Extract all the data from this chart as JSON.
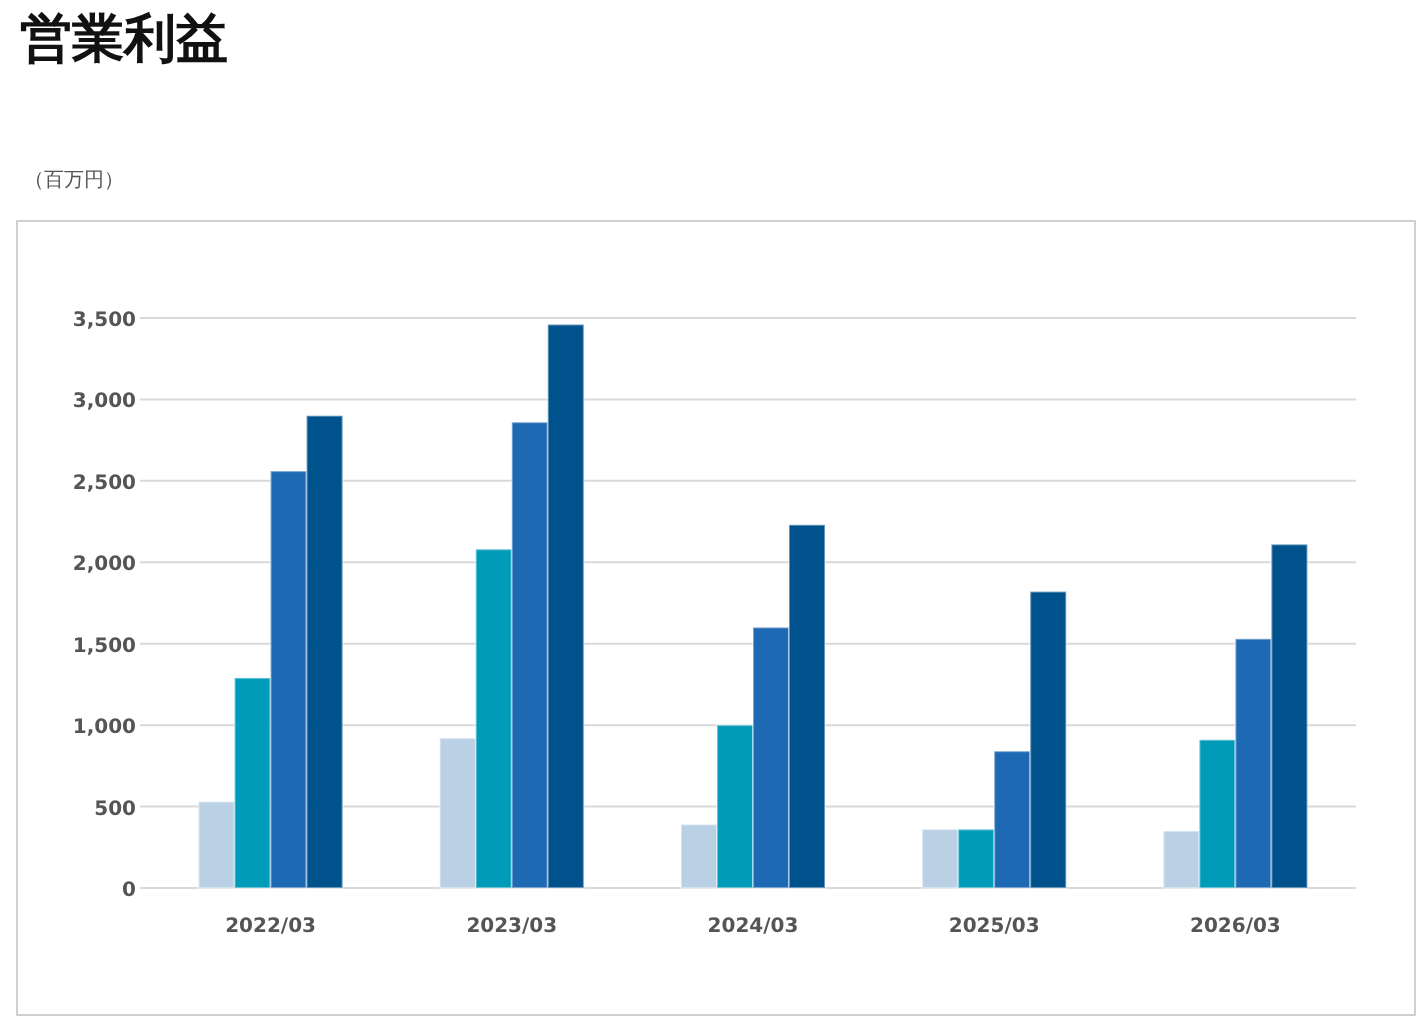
{
  "chart_data": {
    "type": "bar",
    "title": "営業利益",
    "annotations": [
      "（百万円）"
    ],
    "categories": [
      "2022/03",
      "2023/03",
      "2024/03",
      "2025/03",
      "2026/03"
    ],
    "series": [
      {
        "color": "#b9d0e5",
        "values": [
          530,
          920,
          390,
          360,
          350
        ]
      },
      {
        "color": "#009bb8",
        "values": [
          1290,
          2080,
          1000,
          360,
          910
        ]
      },
      {
        "color": "#1e69b3",
        "values": [
          2560,
          2860,
          1600,
          840,
          1530
        ]
      },
      {
        "color": "#00528c",
        "values": [
          2900,
          3460,
          2230,
          1820,
          2110
        ]
      }
    ],
    "ylim": [
      0,
      3500
    ],
    "yticks": [
      {
        "value": 0,
        "label": "0"
      },
      {
        "value": 500,
        "label": "500"
      },
      {
        "value": 1000,
        "label": "1,000"
      },
      {
        "value": 1500,
        "label": "1,500"
      },
      {
        "value": 2000,
        "label": "2,000"
      },
      {
        "value": 2500,
        "label": "2,500"
      },
      {
        "value": 3000,
        "label": "3,000"
      },
      {
        "value": 3500,
        "label": "3,500"
      }
    ],
    "grid": "y"
  }
}
